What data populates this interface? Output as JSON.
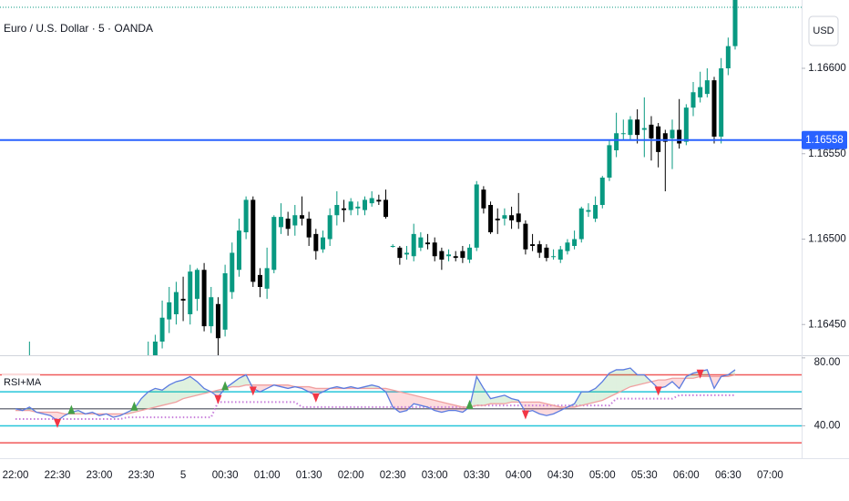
{
  "header": {
    "title": "Euro / U.S. Dollar · 5 · OANDA",
    "currency": "USD"
  },
  "chart_data": [
    {
      "type": "candlestick",
      "categories": [
        "22:00",
        null,
        null,
        null,
        null,
        null,
        "22:30",
        null,
        null,
        null,
        null,
        null,
        "23:00",
        null,
        null,
        null,
        null,
        null,
        "23:30",
        null,
        null,
        null,
        null,
        null,
        "5",
        null,
        null,
        null,
        null,
        null,
        "00:30",
        null,
        null,
        null,
        null,
        null,
        "01:00",
        null,
        null,
        null,
        null,
        null,
        "01:30",
        null,
        null,
        null,
        null,
        null,
        "02:00",
        null,
        null,
        null,
        null,
        null,
        "02:30",
        null,
        null,
        null,
        null,
        null,
        "03:00",
        null,
        null,
        null,
        null,
        null,
        "03:30",
        null,
        null,
        null,
        null,
        null,
        "04:00",
        null,
        null,
        null,
        null,
        null,
        "04:30",
        null,
        null,
        null,
        null,
        null,
        "05:00",
        null,
        null,
        null,
        null,
        null,
        "05:30",
        null,
        null,
        null,
        null,
        null,
        "06:00",
        null,
        null,
        null,
        null,
        null,
        "06:30",
        null,
        null,
        null,
        null,
        null,
        "07:00"
      ],
      "open": [
        null,
        null,
        1.1642,
        null,
        null,
        null,
        null,
        null,
        null,
        null,
        null,
        null,
        null,
        null,
        null,
        null,
        null,
        null,
        null,
        1.16425,
        1.1643,
        1.1644,
        1.16453,
        1.16456,
        1.16465,
        1.16456,
        1.16465,
        1.16482,
        1.16449,
        1.16462,
        1.16447,
        1.16469,
        1.16482,
        1.16504,
        1.16523,
        1.16479,
        1.16471,
        1.16482,
        1.16507,
        1.16512,
        1.16508,
        1.16514,
        1.16512,
        1.16503,
        1.16494,
        1.165,
        1.16514,
        1.16518,
        1.16517,
        1.16518,
        1.16517,
        1.16521,
        1.16523,
        1.16523,
        1.16496,
        1.16495,
        1.16491,
        1.1649,
        1.16495,
        1.16498,
        1.16498,
        1.16493,
        1.1649,
        1.1649,
        1.16493,
        1.16488,
        1.16495,
        1.16529,
        1.1652,
        1.16512,
        1.16512,
        1.16514,
        1.16515,
        1.16509,
        1.16497,
        1.16497,
        1.16495,
        1.1649,
        1.16488,
        1.16493,
        1.16496,
        1.165,
        1.16516,
        1.16512,
        1.1652,
        1.16536,
        1.16552,
        1.16562,
        1.16561,
        1.1657,
        1.16564,
        1.16567,
        1.16566,
        1.16562,
        1.16559,
        1.16564,
        1.16557,
        1.16577,
        1.16583,
        1.16585,
        1.16593,
        1.1656,
        1.166,
        1.16613,
        null,
        null,
        null,
        null,
        null
      ],
      "high": [
        null,
        null,
        1.1644,
        null,
        null,
        null,
        null,
        null,
        null,
        null,
        null,
        null,
        null,
        null,
        null,
        null,
        null,
        null,
        null,
        1.1644,
        1.16444,
        1.16464,
        1.16472,
        1.16475,
        1.16478,
        1.16485,
        1.16483,
        1.16486,
        1.16472,
        1.16466,
        1.16485,
        1.16498,
        1.16512,
        1.16525,
        1.16525,
        1.16483,
        1.16495,
        1.16514,
        1.16521,
        1.16516,
        1.1652,
        1.16525,
        1.16516,
        1.16506,
        1.16505,
        1.16518,
        1.16528,
        1.16523,
        1.16524,
        1.16522,
        1.16525,
        1.16528,
        1.16526,
        1.16529,
        1.16497,
        1.16496,
        1.16496,
        1.16509,
        1.16504,
        1.16503,
        1.16501,
        1.16495,
        1.16494,
        1.16493,
        1.16496,
        1.16497,
        1.16534,
        1.16531,
        1.16522,
        1.16518,
        1.16518,
        1.16519,
        1.16527,
        1.16511,
        1.16503,
        1.16499,
        1.16497,
        1.16494,
        1.16496,
        1.165,
        1.16505,
        1.16519,
        1.16521,
        1.16525,
        1.16537,
        1.16558,
        1.16574,
        1.1657,
        1.16572,
        1.16576,
        1.16583,
        1.16572,
        1.16568,
        1.16564,
        1.1657,
        1.16582,
        1.16579,
        1.16592,
        1.16598,
        1.166,
        1.16595,
        1.16606,
        1.16618,
        1.16645,
        null,
        null,
        null,
        null,
        null
      ],
      "low": [
        null,
        null,
        1.1641,
        null,
        null,
        null,
        null,
        null,
        null,
        null,
        null,
        null,
        null,
        null,
        null,
        null,
        null,
        null,
        null,
        1.1641,
        1.1642,
        1.16436,
        1.16445,
        1.1645,
        1.16452,
        1.1645,
        1.16458,
        1.16446,
        1.16445,
        1.16432,
        1.16443,
        1.16465,
        1.16478,
        1.165,
        1.16472,
        1.16466,
        1.16465,
        1.1648,
        1.16503,
        1.16502,
        1.16502,
        1.16508,
        1.16496,
        1.16488,
        1.16492,
        1.16496,
        1.16508,
        1.1651,
        1.16514,
        1.16514,
        1.16514,
        1.16519,
        1.1652,
        1.16512,
        1.16495,
        1.16485,
        1.16488,
        1.16487,
        1.16493,
        1.16494,
        1.16487,
        1.16482,
        1.16487,
        1.16487,
        1.16486,
        1.16486,
        1.16493,
        1.16515,
        1.16503,
        1.16503,
        1.16508,
        1.16506,
        1.16506,
        1.16491,
        1.16493,
        1.16489,
        1.16487,
        1.16488,
        1.16486,
        1.16491,
        1.16494,
        1.16498,
        1.16513,
        1.1651,
        1.16518,
        1.16534,
        1.16548,
        1.16558,
        1.16558,
        1.16556,
        1.16548,
        1.16546,
        1.16542,
        1.16528,
        1.16541,
        1.16553,
        1.16555,
        1.16572,
        1.1658,
        1.16583,
        1.16556,
        1.16556,
        1.16596,
        1.16611,
        null,
        null,
        null,
        null,
        null
      ],
      "close": [
        null,
        null,
        1.16425,
        null,
        null,
        null,
        null,
        null,
        null,
        null,
        null,
        null,
        null,
        null,
        null,
        null,
        null,
        null,
        null,
        1.1643,
        1.1644,
        1.16454,
        1.16463,
        1.16469,
        1.16464,
        1.16481,
        1.16482,
        1.16449,
        1.16466,
        1.16442,
        1.1648,
        1.16492,
        1.16505,
        1.16523,
        1.16475,
        1.16472,
        1.16483,
        1.16513,
        1.16513,
        1.16506,
        1.16514,
        1.16512,
        1.16501,
        1.16493,
        1.16501,
        1.16514,
        1.1652,
        1.16517,
        1.16522,
        1.16519,
        1.16523,
        1.16524,
        1.16522,
        1.16513,
        1.16496,
        1.16489,
        1.16492,
        1.16503,
        1.16501,
        1.16497,
        1.1649,
        1.16488,
        1.16491,
        1.16489,
        1.16489,
        1.16495,
        1.16532,
        1.16518,
        1.16504,
        1.16511,
        1.16514,
        1.16511,
        1.1651,
        1.16494,
        1.16496,
        1.16492,
        1.16489,
        1.1649,
        1.16494,
        1.16498,
        1.165,
        1.16518,
        1.16517,
        1.1652,
        1.16536,
        1.16555,
        1.16562,
        1.16562,
        1.1657,
        1.16561,
        1.16565,
        1.16559,
        1.16551,
        1.16557,
        1.16564,
        1.16556,
        1.16577,
        1.16586,
        1.16589,
        1.16593,
        1.1656,
        1.166,
        1.16613,
        1.16641,
        null,
        null,
        null,
        null,
        null
      ],
      "up_color": "#089981",
      "down_color": "#000000",
      "ylim": [
        1.16432,
        1.1664
      ],
      "yticks": [
        {
          "value": 1.1645,
          "label": "1.16450"
        },
        {
          "value": 1.165,
          "label": "1.16500"
        },
        {
          "value": 1.1655,
          "label": "1.16550"
        },
        {
          "value": 1.166,
          "label": "1.16600"
        }
      ],
      "price_line": {
        "value": 1.16558,
        "color": "#2962ff"
      }
    },
    {
      "type": "line",
      "title": "RSI+MA",
      "series": [
        {
          "color": "#5b7be0",
          "values": [
            50,
            49,
            51,
            48,
            47,
            46,
            43,
            46,
            48,
            49,
            47,
            48,
            46,
            47,
            45,
            46,
            48,
            50,
            56,
            60,
            62,
            61,
            64,
            66,
            67,
            69,
            66,
            62,
            60,
            57,
            62,
            65,
            68,
            70,
            62,
            60,
            62,
            64,
            63,
            62,
            63,
            62,
            60,
            58,
            60,
            62,
            63,
            62,
            63,
            62,
            63,
            64,
            63,
            60,
            51,
            48,
            49,
            53,
            52,
            51,
            49,
            48,
            49,
            49,
            48,
            51,
            69,
            62,
            56,
            57,
            58,
            56,
            55,
            48,
            49,
            47,
            46,
            47,
            49,
            51,
            53,
            60,
            60,
            62,
            66,
            71,
            73,
            73,
            74,
            70,
            70,
            66,
            62,
            63,
            66,
            62,
            69,
            71,
            72,
            73,
            62,
            69,
            70,
            73,
            null,
            null,
            null,
            null,
            null
          ]
        },
        {
          "color": "#f0a0a0",
          "values": [
            49,
            49,
            49,
            48,
            48,
            48,
            48,
            47,
            47,
            47,
            47,
            47,
            47,
            47,
            47,
            47,
            47,
            48,
            49,
            50,
            51,
            52,
            53,
            54,
            56,
            57,
            58,
            59,
            60,
            61,
            62,
            63,
            63,
            64,
            64,
            64,
            64,
            64,
            64,
            64,
            63,
            63,
            63,
            62,
            62,
            62,
            62,
            62,
            62,
            62,
            62,
            62,
            62,
            62,
            61,
            60,
            59,
            58,
            57,
            56,
            55,
            54,
            53,
            52,
            51,
            51,
            52,
            52,
            53,
            53,
            53,
            54,
            54,
            54,
            54,
            54,
            53,
            52,
            51,
            51,
            51,
            52,
            53,
            54,
            55,
            57,
            59,
            61,
            63,
            64,
            65,
            66,
            67,
            67,
            68,
            68,
            68,
            68,
            69,
            69,
            69,
            69,
            69,
            70,
            null,
            null,
            null,
            null,
            null
          ]
        },
        {
          "color": "#c77ddb",
          "dash": true,
          "values": [
            44,
            44,
            44,
            44,
            44,
            44,
            44,
            44,
            44,
            44,
            44,
            44,
            44,
            44,
            44,
            44,
            45,
            45,
            45,
            45,
            45,
            45,
            45,
            45,
            45,
            45,
            45,
            45,
            45,
            54,
            54,
            54,
            54,
            54,
            54,
            54,
            54,
            54,
            54,
            54,
            54,
            51,
            51,
            51,
            51,
            51,
            51,
            51,
            51,
            51,
            51,
            51,
            51,
            51,
            51,
            51,
            51,
            51,
            51,
            51,
            51,
            51,
            51,
            51,
            51,
            51,
            52,
            52,
            52,
            52,
            52,
            52,
            52,
            52,
            52,
            52,
            52,
            52,
            52,
            52,
            52,
            52,
            52,
            52,
            52,
            52,
            56,
            56,
            56,
            56,
            56,
            56,
            56,
            56,
            56,
            58,
            58,
            58,
            58,
            58,
            58,
            58,
            58,
            58,
            null,
            null,
            null,
            null,
            null
          ]
        }
      ],
      "fill_up_color": "#4caf50",
      "fill_down_color": "#f23645",
      "buy": {
        "color": "#43a047",
        "values": [
          null,
          null,
          null,
          null,
          null,
          null,
          null,
          null,
          48,
          null,
          null,
          null,
          null,
          null,
          null,
          null,
          null,
          50,
          null,
          null,
          null,
          null,
          null,
          null,
          null,
          null,
          null,
          null,
          null,
          null,
          62,
          null,
          null,
          null,
          null,
          null,
          null,
          null,
          null,
          null,
          null,
          null,
          null,
          null,
          null,
          null,
          null,
          null,
          null,
          null,
          null,
          null,
          null,
          null,
          null,
          null,
          null,
          null,
          null,
          null,
          null,
          null,
          null,
          null,
          null,
          51,
          null,
          null,
          null,
          null,
          null,
          null,
          null,
          null,
          null,
          null,
          null,
          null,
          null,
          null,
          null,
          null,
          null,
          null,
          null,
          null,
          null,
          null,
          null,
          null,
          null,
          null,
          null,
          null,
          null,
          null,
          null,
          null,
          null,
          null,
          null,
          null,
          null,
          null,
          null,
          null,
          null,
          null,
          null
        ]
      },
      "sell": {
        "color": "#f23645",
        "values": [
          null,
          null,
          null,
          null,
          null,
          null,
          43,
          null,
          null,
          null,
          null,
          null,
          null,
          null,
          null,
          null,
          null,
          null,
          null,
          null,
          null,
          null,
          null,
          null,
          null,
          null,
          null,
          null,
          null,
          57,
          null,
          null,
          null,
          null,
          62,
          null,
          null,
          null,
          null,
          null,
          null,
          null,
          null,
          58,
          null,
          null,
          null,
          null,
          null,
          null,
          null,
          null,
          null,
          null,
          null,
          null,
          null,
          null,
          null,
          null,
          null,
          null,
          null,
          null,
          null,
          null,
          null,
          null,
          null,
          null,
          null,
          null,
          null,
          48,
          null,
          null,
          null,
          null,
          null,
          null,
          null,
          null,
          null,
          null,
          null,
          null,
          null,
          null,
          null,
          null,
          null,
          null,
          62,
          null,
          null,
          null,
          null,
          null,
          72,
          null,
          null,
          null,
          null,
          null,
          null,
          null,
          null,
          null,
          null
        ]
      },
      "levels": [
        {
          "value": 70,
          "color": "#f05a5a"
        },
        {
          "value": 60,
          "color": "#26c6da"
        },
        {
          "value": 50,
          "color": "#787b86"
        },
        {
          "value": 40,
          "color": "#26c6da"
        },
        {
          "value": 30,
          "color": "#f05a5a"
        }
      ],
      "ylim": [
        22,
        81
      ],
      "yticks": [
        {
          "value": 40,
          "label": "40.00"
        },
        {
          "value": 80,
          "label": "80.00"
        }
      ]
    }
  ]
}
